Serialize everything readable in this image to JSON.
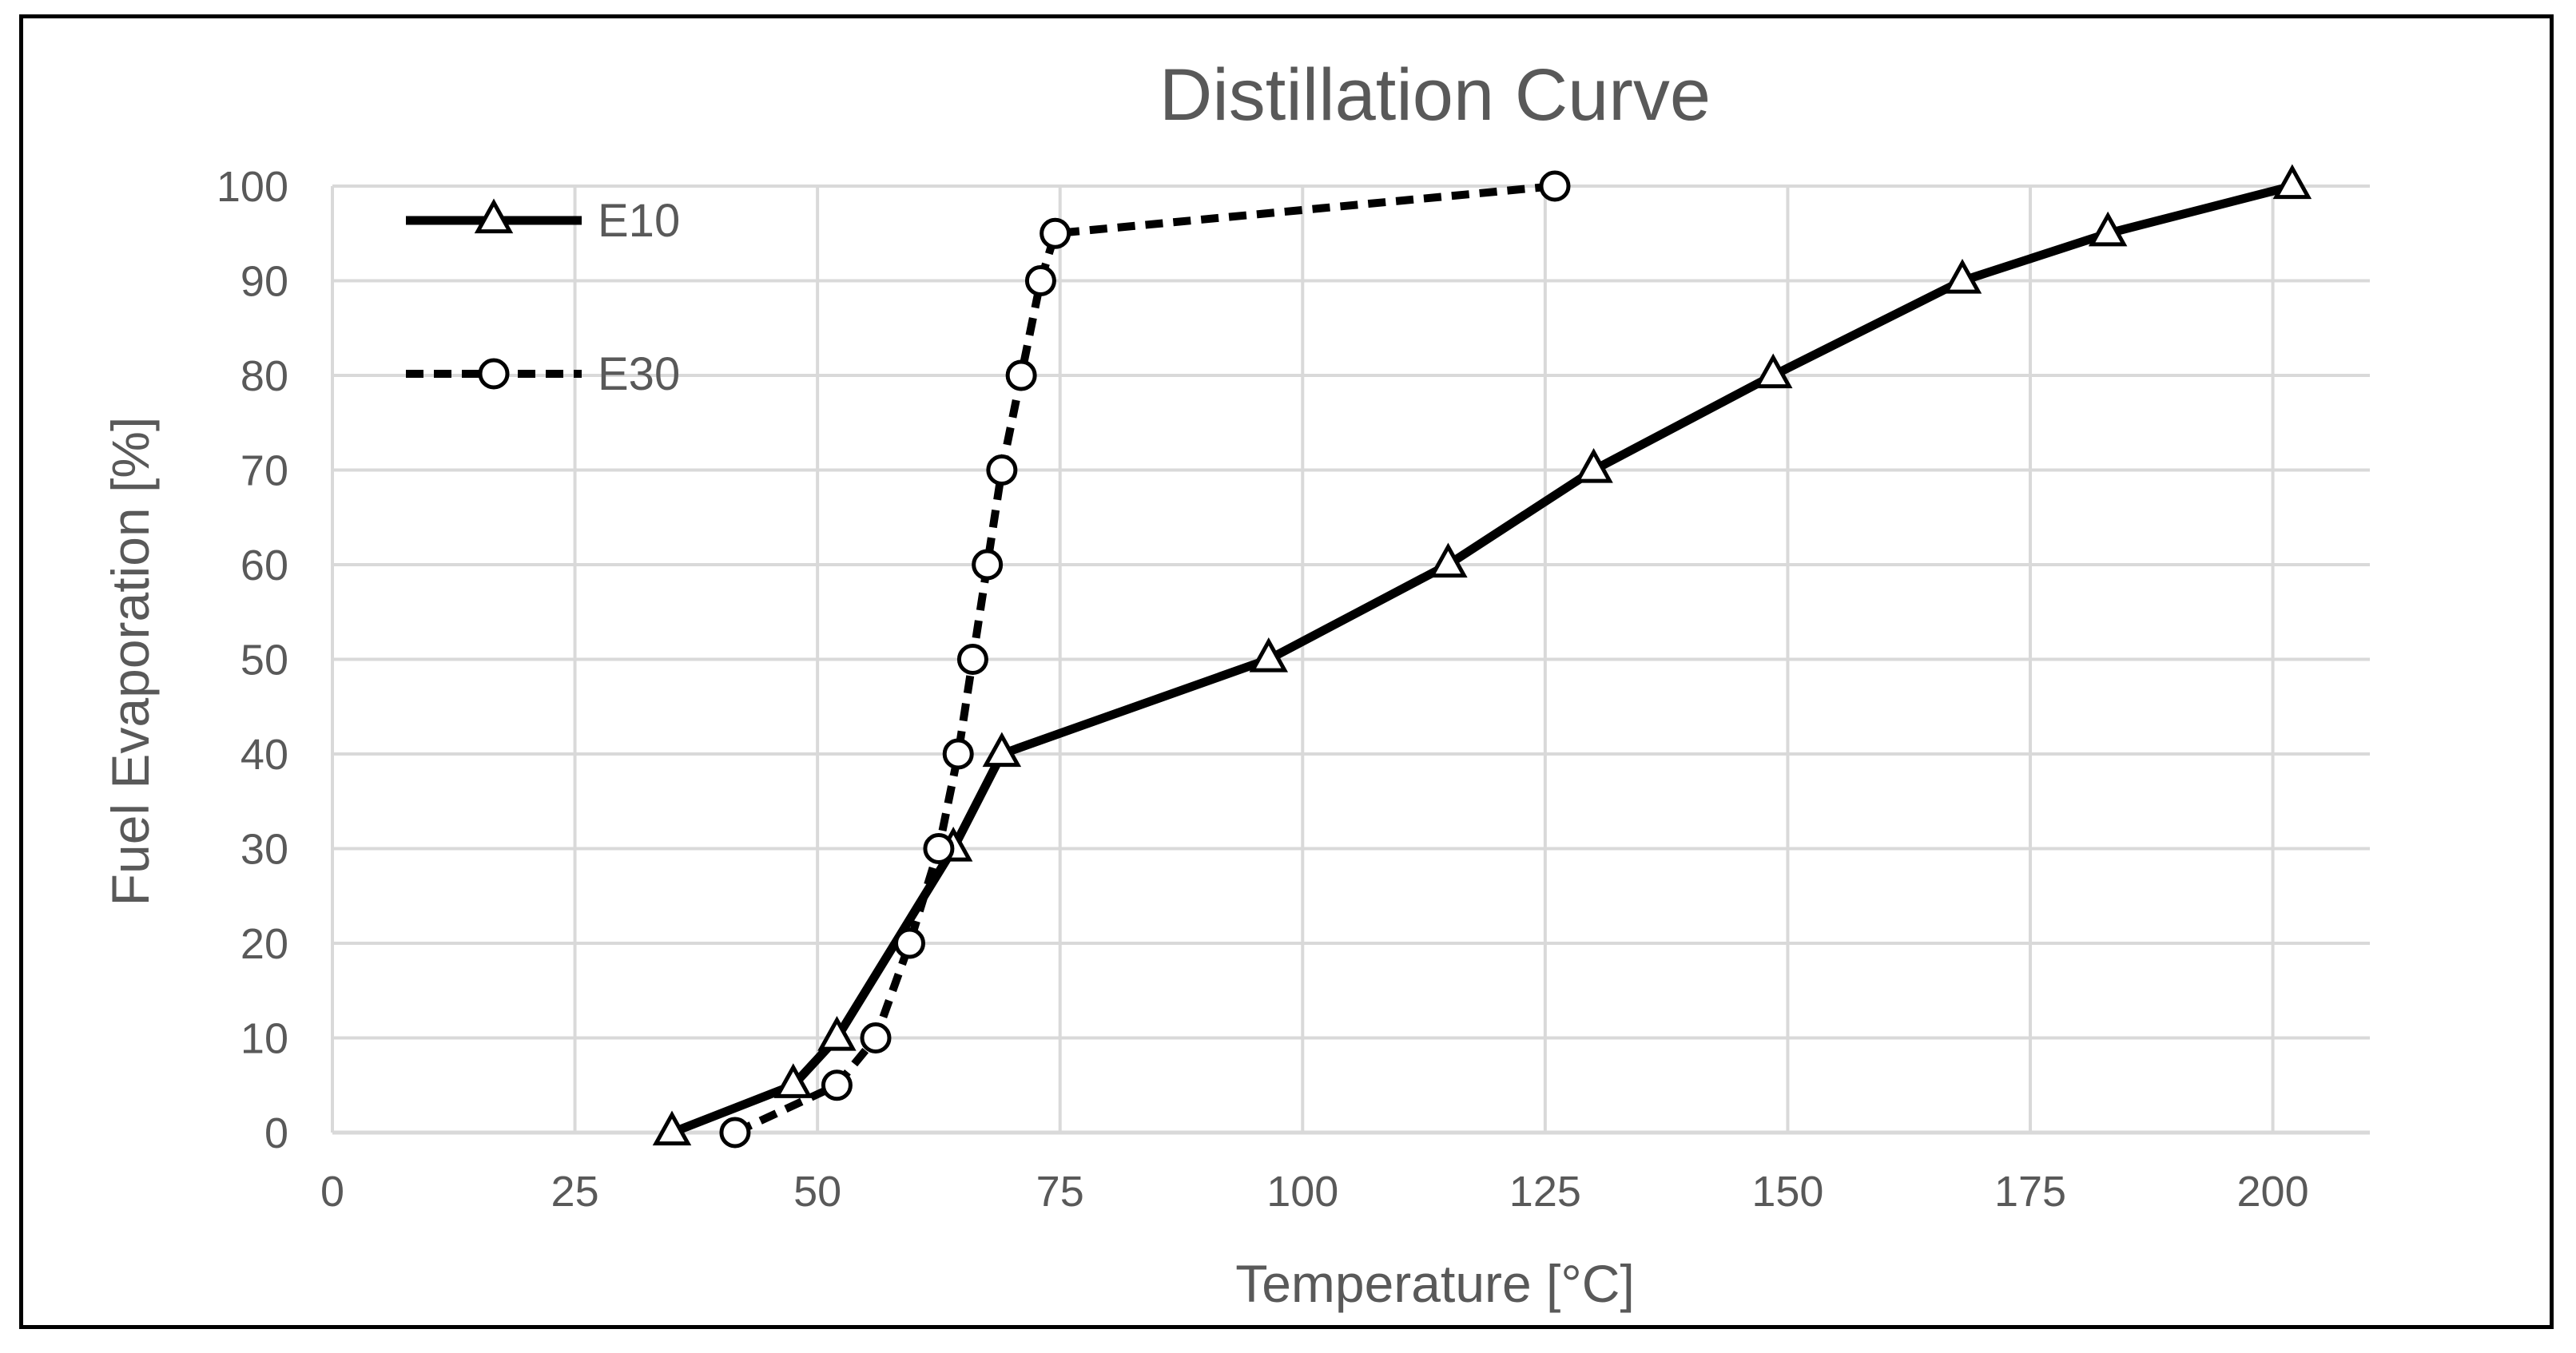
{
  "chart_data": {
    "type": "line",
    "title": "Distillation Curve",
    "xlabel": "Temperature [°C]",
    "ylabel": "Fuel Evaporation [%]",
    "xlim": [
      0,
      210
    ],
    "ylim": [
      0,
      100
    ],
    "xticks": [
      0,
      25,
      50,
      75,
      100,
      125,
      150,
      175,
      200
    ],
    "yticks": [
      0,
      10,
      20,
      30,
      40,
      50,
      60,
      70,
      80,
      90,
      100
    ],
    "grid": true,
    "legend_position": "top-left",
    "series": [
      {
        "name": "E10",
        "line_style": "solid",
        "marker": "triangle",
        "color": "#000000",
        "x": [
          35,
          47.5,
          52,
          64,
          69,
          96.5,
          115,
          130,
          148.5,
          168,
          183,
          202
        ],
        "y": [
          0,
          5,
          10,
          30,
          40,
          50,
          60,
          70,
          80,
          90,
          95,
          100
        ]
      },
      {
        "name": "E30",
        "line_style": "dashed",
        "marker": "circle",
        "color": "#000000",
        "x": [
          41.5,
          52,
          56,
          59.5,
          62.5,
          64.5,
          66,
          67.5,
          69,
          71,
          73,
          74.5,
          126
        ],
        "y": [
          0,
          5,
          10,
          20,
          30,
          40,
          50,
          60,
          70,
          80,
          90,
          95,
          100
        ]
      }
    ]
  }
}
